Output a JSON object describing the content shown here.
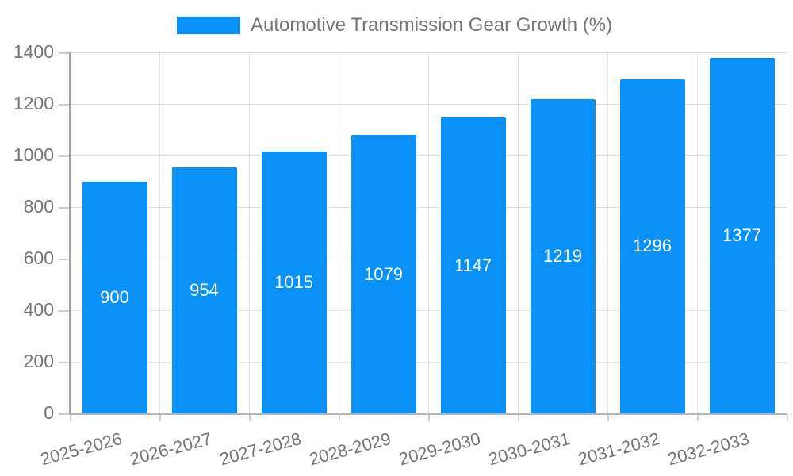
{
  "legend": {
    "series_label": "Automotive Transmission Gear Growth (%)",
    "swatch_color": "#0991f8"
  },
  "chart_data": {
    "type": "bar",
    "title": "Automotive Transmission Gear Growth (%)",
    "categories": [
      "2025-2026",
      "2026-2027",
      "2027-2028",
      "2028-2029",
      "2029-2030",
      "2030-2031",
      "2031-2032",
      "2032-2033"
    ],
    "values": [
      900,
      954,
      1015,
      1079,
      1147,
      1219,
      1296,
      1377
    ],
    "value_labels": [
      "900",
      "954",
      "1015",
      "1079",
      "1147",
      "1219",
      "1296",
      "1377"
    ],
    "ytick_labels": [
      "0",
      "200",
      "400",
      "600",
      "800",
      "1000",
      "1200",
      "1400"
    ],
    "yticks": [
      0,
      200,
      400,
      600,
      800,
      1000,
      1200,
      1400
    ],
    "ylim": [
      0,
      1400
    ],
    "xlabel": "",
    "ylabel": "",
    "grid": true,
    "legend_position": "top"
  },
  "colors": {
    "bar": "#0991f8",
    "gridline": "#e3e3e3",
    "y_axis_line": "#9e9e9e",
    "x_axis_line": "#b5b5b5",
    "tick": "#cccccc",
    "label_text": "#757575",
    "bar_label_text": "#ffffff",
    "background": "#ffffff"
  }
}
